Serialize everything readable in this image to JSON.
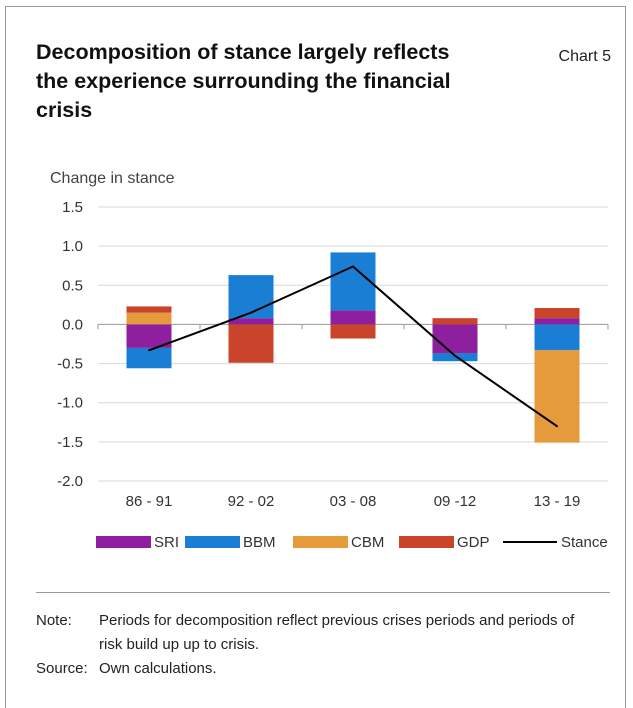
{
  "header": {
    "title": "Decomposition of stance largely reflects the experience surrounding the financial crisis",
    "chart_number": "Chart 5"
  },
  "notes": {
    "note_label": "Note:",
    "note_text": "Periods for decomposition reflect previous crises periods and periods of risk build up up to crisis.",
    "source_label": "Source:",
    "source_text": "Own calculations."
  },
  "chart_data": {
    "type": "bar",
    "stacked": true,
    "categories": [
      "86 - 91",
      "92 - 02",
      "03 - 08",
      "09 -12",
      "13 - 19"
    ],
    "ylabel": "Change in stance",
    "ylim": [
      -2.0,
      1.5
    ],
    "yticks": [
      "1.5",
      "1.0",
      "0.5",
      "0.0",
      "-0.5",
      "-1.0",
      "-1.5",
      "-2.0"
    ],
    "ytick_values": [
      1.5,
      1.0,
      0.5,
      0.0,
      -0.5,
      -1.0,
      -1.5,
      -2.0
    ],
    "grid": true,
    "legend_position": "bottom",
    "series": [
      {
        "name": "SRI",
        "color": "#8e1f9f",
        "values": [
          -0.3,
          0.08,
          0.18,
          -0.37,
          0.08
        ]
      },
      {
        "name": "BBM",
        "color": "#1a7fd4",
        "values": [
          -0.26,
          0.55,
          0.74,
          -0.1,
          -0.33
        ]
      },
      {
        "name": "CBM",
        "color": "#e59a3b",
        "values": [
          0.15,
          0.0,
          0.0,
          0.0,
          -1.18
        ]
      },
      {
        "name": "GDP",
        "color": "#c9442a",
        "values": [
          0.08,
          -0.49,
          -0.18,
          0.08,
          0.13
        ]
      }
    ],
    "line_series": {
      "name": "Stance",
      "color": "#000000",
      "values": [
        -0.33,
        0.15,
        0.74,
        -0.4,
        -1.3
      ]
    }
  }
}
